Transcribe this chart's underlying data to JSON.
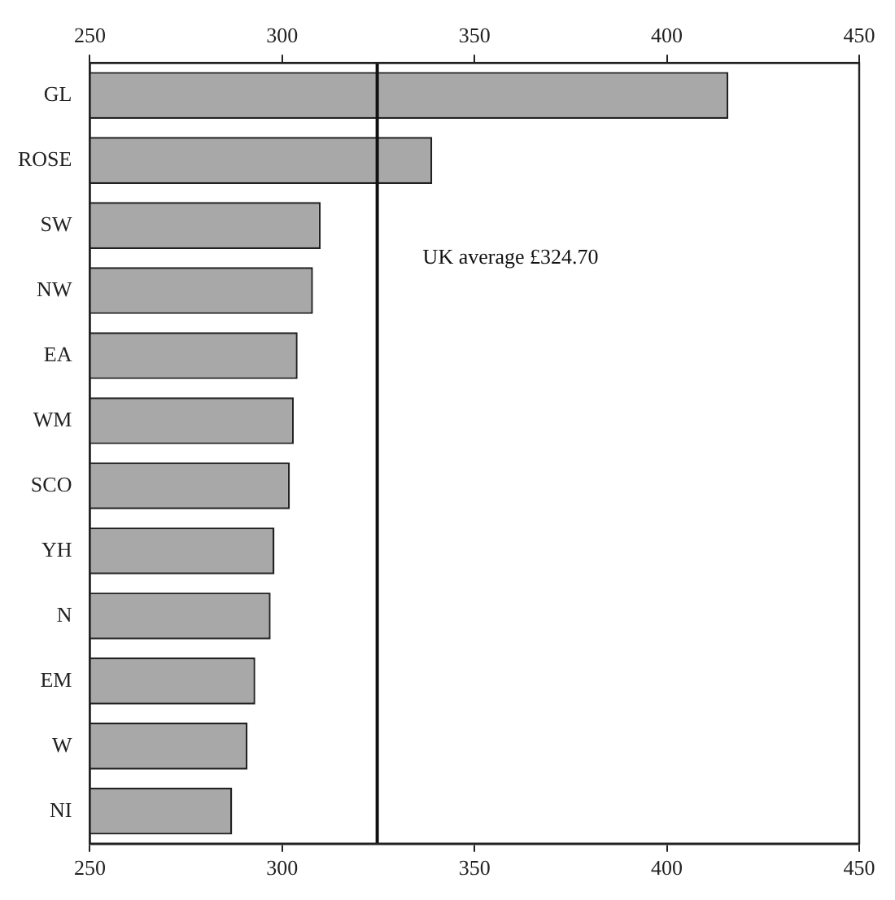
{
  "chart_data": {
    "type": "bar",
    "orientation": "horizontal",
    "categories": [
      "GL",
      "ROSE",
      "SW",
      "NW",
      "EA",
      "WM",
      "SCO",
      "YH",
      "N",
      "EM",
      "W",
      "NI"
    ],
    "values": [
      416,
      339,
      310,
      308,
      304,
      303,
      302,
      298,
      297,
      293,
      291,
      287
    ],
    "color": "#a8a8a8",
    "xlim": [
      250,
      450
    ],
    "xticks": [
      250,
      300,
      350,
      400,
      450
    ],
    "x2lim": [
      250,
      450
    ],
    "x2ticks": [
      250,
      300,
      350,
      400,
      450
    ],
    "ref_lines": [
      {
        "axis": "x",
        "value": 324.7,
        "label": "UK average £324.70",
        "color": "#111111"
      }
    ],
    "grid": false,
    "legend": false
  }
}
